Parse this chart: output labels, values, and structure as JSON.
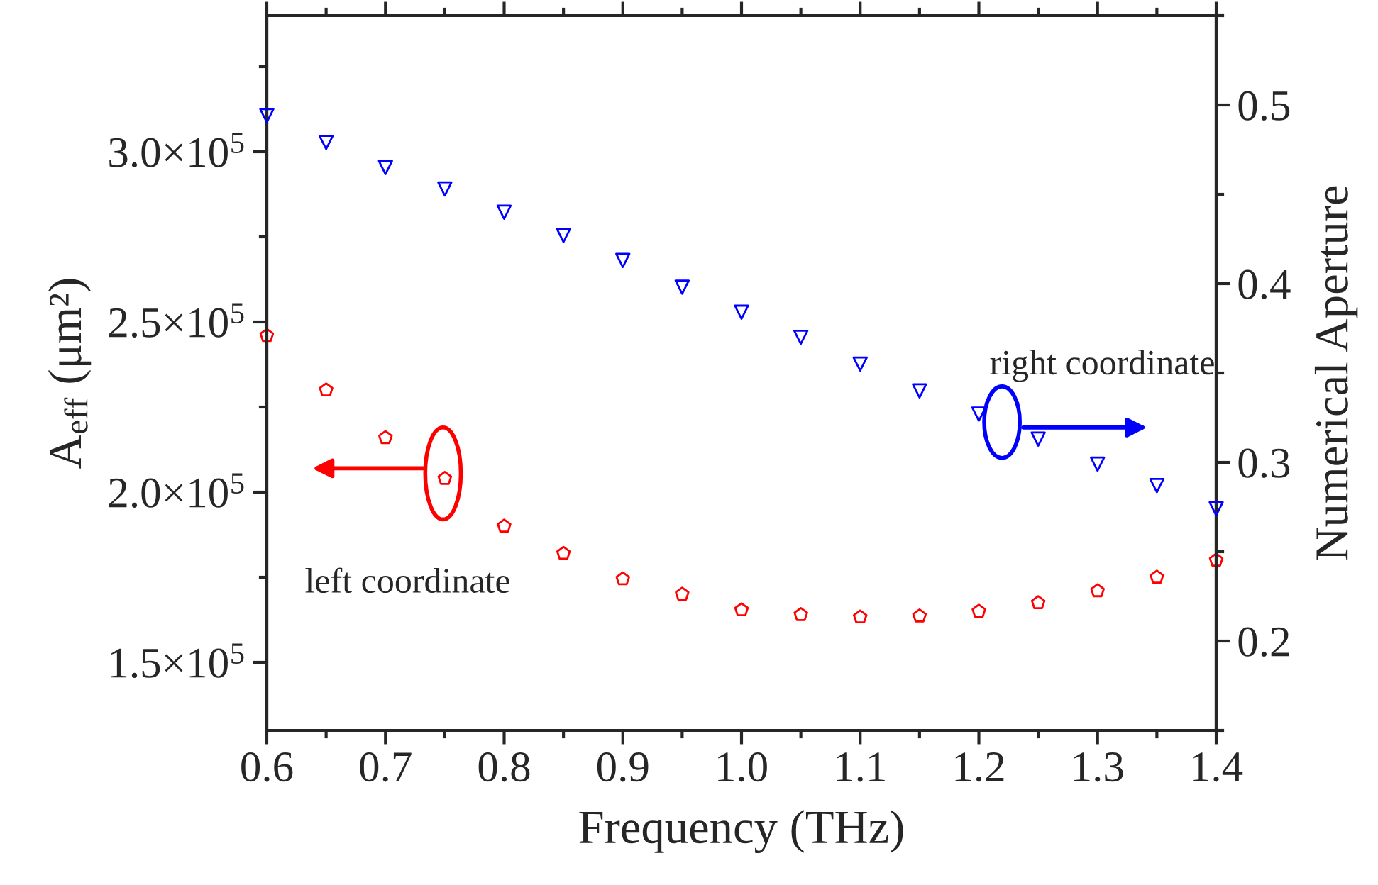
{
  "chart_data": {
    "type": "scatter",
    "xlabel": "Frequency (THz)",
    "ylabel": "A$_{eff}$ (μm²)",
    "y2label": "Numerical Aperture",
    "x": [
      0.6,
      0.65,
      0.7,
      0.75,
      0.8,
      0.85,
      0.9,
      0.95,
      1.0,
      1.05,
      1.1,
      1.15,
      1.2,
      1.25,
      1.3,
      1.35,
      1.4
    ],
    "series": [
      {
        "marker": "circle",
        "color": "#ff0000",
        "values": [
          246000,
          230000,
          216000,
          204000,
          190000,
          182000,
          174500,
          170000,
          165400,
          164000,
          163300,
          163600,
          165000,
          167500,
          171000,
          175000,
          180000
        ]
      },
      {
        "marker": "triangle",
        "axis": "y2",
        "color": "#0000ff",
        "values": [
          0.494,
          0.479,
          0.465,
          0.453,
          0.44,
          0.427,
          0.413,
          0.398,
          0.384,
          0.37,
          0.355,
          0.34,
          0.327,
          0.313,
          0.299,
          0.287,
          0.274
        ]
      }
    ],
    "xlim": [
      0.6,
      1.4
    ],
    "xticks": [
      {
        "value": 0.6,
        "label": "0.6"
      },
      {
        "value": 0.7,
        "label": "0.7"
      },
      {
        "value": 0.8,
        "label": "0.8"
      },
      {
        "value": 0.9,
        "label": "0.9"
      },
      {
        "value": 1.0,
        "label": "1.0"
      },
      {
        "value": 1.1,
        "label": "1.1"
      },
      {
        "value": 1.2,
        "label": "1.2"
      },
      {
        "value": 1.3,
        "label": "1.3"
      },
      {
        "value": 1.4,
        "label": "1.4"
      }
    ],
    "ylim": [
      130000,
      340000
    ],
    "yticks": [
      {
        "value": 150000,
        "label": "1.5×10$^{5}$"
      },
      {
        "value": 200000,
        "label": "2.0×10$^{5}$"
      },
      {
        "value": 250000,
        "label": "2.5×10$^{5}$"
      },
      {
        "value": 300000,
        "label": "3.0×10$^{5}$"
      }
    ],
    "y2lim": [
      0.15,
      0.55
    ],
    "y2ticks": [
      0.2,
      0.3,
      0.4,
      0.5
    ],
    "annotations": [
      "left coordinate",
      "right coordinate"
    ]
  }
}
